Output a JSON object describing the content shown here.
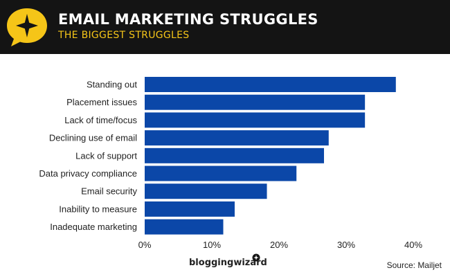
{
  "header": {
    "title": "EMAIL MARKETING STRUGGLES",
    "subtitle": "THE BIGGEST STRUGGLES",
    "icon": "star-speech-bubble-icon"
  },
  "colors": {
    "header_background": "#141414",
    "accent_yellow": "#f5c518",
    "bar": "#0b47a8"
  },
  "chart_data": {
    "type": "bar",
    "orientation": "horizontal",
    "categories": [
      "Standing out",
      "Placement issues",
      "Lack of time/focus",
      "Declining use of email",
      "Lack of support",
      "Data privacy compliance",
      "Email security",
      "Inability to measure",
      "Inadequate marketing"
    ],
    "values": [
      37.4,
      32.8,
      32.8,
      27.4,
      26.7,
      22.6,
      18.2,
      13.4,
      11.7
    ],
    "xlim": [
      0,
      40
    ],
    "xticks": [
      "0%",
      "10%",
      "20%",
      "30%",
      "40%"
    ],
    "grid": false,
    "legend": "none"
  },
  "footer": {
    "brand": "bloggingwizard",
    "source": "Source: Mailjet"
  }
}
